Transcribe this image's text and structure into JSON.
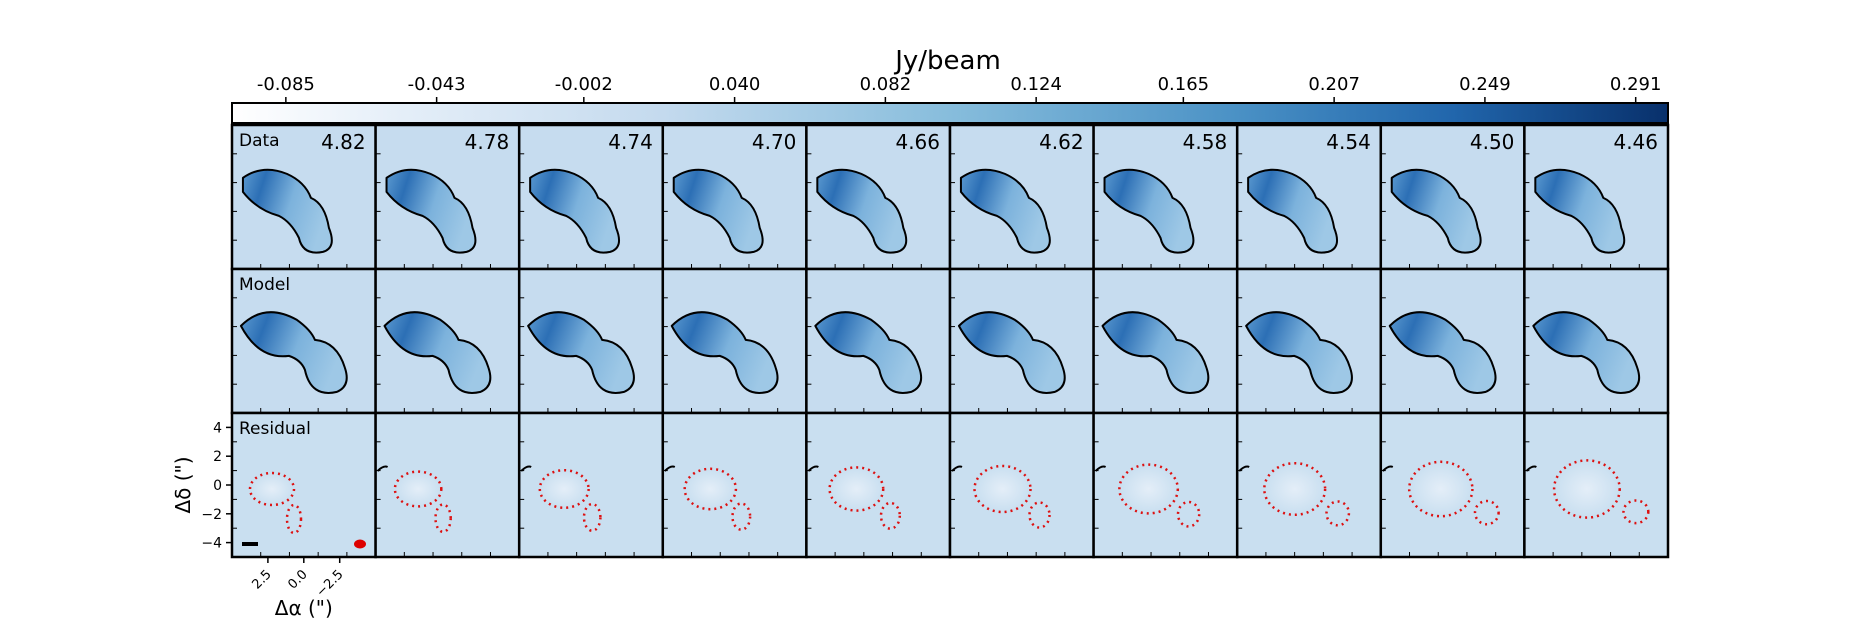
{
  "chart_data": {
    "type": "heatmap",
    "title": "",
    "colorbar": {
      "label": "Jy/beam",
      "ticks": [
        "-0.085",
        "-0.043",
        "-0.002",
        "0.040",
        "0.082",
        "0.124",
        "0.165",
        "0.207",
        "0.249",
        "0.291"
      ],
      "range": [
        -0.1,
        0.3
      ],
      "colormap": "Blues",
      "placement": "top"
    },
    "rows": [
      "Data",
      "Model",
      "Residual"
    ],
    "channels": [
      "4.82",
      "4.78",
      "4.74",
      "4.70",
      "4.66",
      "4.62",
      "4.58",
      "4.54",
      "4.50",
      "4.46"
    ],
    "xlabel": "Δα (\")",
    "ylabel": "Δδ (\")",
    "xticks": [
      "2.5",
      "0.0",
      "−2.5"
    ],
    "yticks": [
      "4",
      "2",
      "0",
      "−2",
      "−4"
    ],
    "xlim": [
      5,
      -5
    ],
    "ylim": [
      -5,
      5
    ],
    "contours": {
      "data_model": "#000000",
      "residual_negative": "#dd1111"
    },
    "beam_color": "#dd0000",
    "scalebar_color": "#000000"
  }
}
